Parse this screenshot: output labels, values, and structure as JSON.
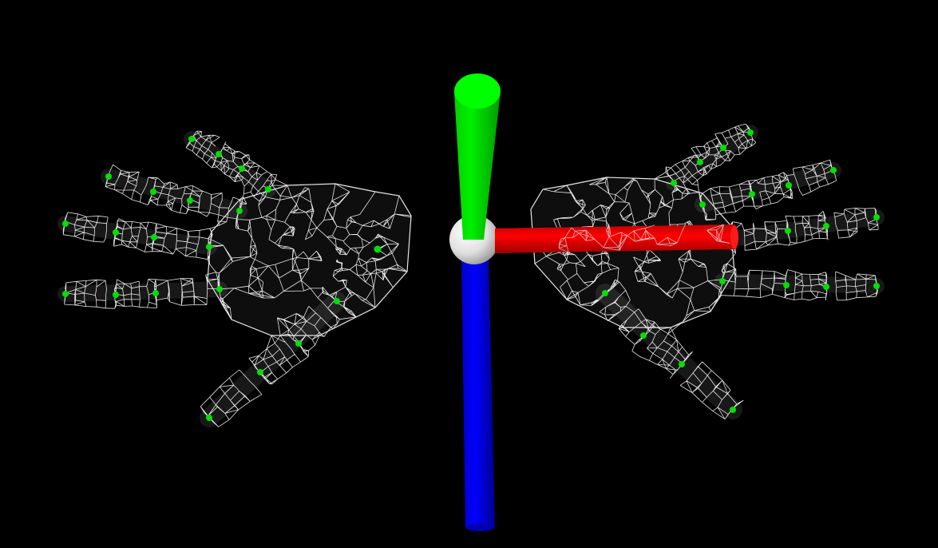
{
  "colors": {
    "background": "#000000",
    "mesh": "#e8e8e8",
    "keypoint": "#00e000",
    "axis_x": "#ff0000",
    "axis_y": "#00e000",
    "axis_z": "#0000f0",
    "origin": "#f2f2f2"
  },
  "scene": {
    "left_hand": {
      "keypoint_count": 21
    },
    "right_hand": {
      "keypoint_count": 21
    },
    "axes": [
      "x-axis",
      "y-axis",
      "z-axis"
    ]
  }
}
